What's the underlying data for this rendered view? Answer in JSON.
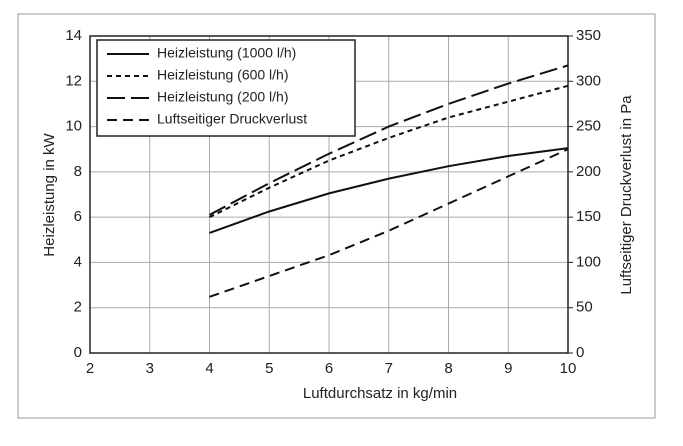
{
  "chart_data": {
    "type": "line",
    "x_label": "Luftdurchsatz in kg/min",
    "y_label": "Heizleistung in kW",
    "y2_label": "Luftseitiger Druckverlust in Pa",
    "x": [
      4,
      5,
      6,
      7,
      8,
      9,
      10
    ],
    "xlim": [
      2,
      10
    ],
    "xticks": [
      2,
      3,
      4,
      5,
      6,
      7,
      8,
      9,
      10
    ],
    "ylim": [
      0,
      14
    ],
    "yticks": [
      0,
      2,
      4,
      6,
      8,
      10,
      12,
      14
    ],
    "y2lim": [
      0,
      350
    ],
    "y2ticks": [
      0,
      50,
      100,
      150,
      200,
      250,
      300,
      350
    ],
    "grid": true,
    "legend": "upper-left",
    "series": [
      {
        "name": "Heizleistung (1000 l/h)",
        "color": "#111111",
        "dash": "solid",
        "values": [
          5.3,
          6.25,
          7.05,
          7.7,
          8.25,
          8.7,
          9.05
        ]
      },
      {
        "name": "Heizleistung (600 l/h)",
        "color": "#111111",
        "dash": "short",
        "values": [
          6.0,
          7.3,
          8.5,
          9.5,
          10.4,
          11.1,
          11.8
        ]
      },
      {
        "name": "Heizleistung (200 l/h)",
        "color": "#111111",
        "dash": "long",
        "values": [
          6.1,
          7.5,
          8.8,
          10.0,
          11.0,
          11.9,
          12.7
        ]
      },
      {
        "name": "Luftseitiger Druckverlust",
        "color": "#111111",
        "dash": "medium",
        "axis": "y2",
        "values": [
          62,
          85,
          108,
          135,
          165,
          195,
          225
        ]
      }
    ]
  }
}
